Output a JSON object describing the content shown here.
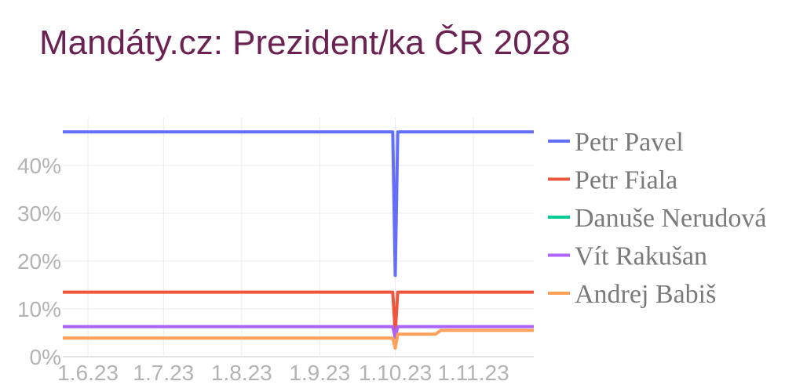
{
  "chart_data": {
    "type": "line",
    "title": "Mandáty.cz: Prezident/ka ČR 2028",
    "xlabel": "",
    "ylabel": "",
    "x_ticks": [
      "1.6.23",
      "1.7.23",
      "1.8.23",
      "1.9.23",
      "1.10.23",
      "1.11.23"
    ],
    "y_ticks": [
      "0%",
      "10%",
      "20%",
      "30%",
      "40%"
    ],
    "x_range": [
      "2023-05-22",
      "2023-11-25"
    ],
    "ylim": [
      0,
      50
    ],
    "grid": true,
    "legend_position": "right",
    "series": [
      {
        "name": "Petr Pavel",
        "color": "#636efa",
        "points": [
          [
            "2023-05-22",
            47
          ],
          [
            "2023-09-29",
            47
          ],
          [
            "2023-09-30",
            47
          ],
          [
            "2023-10-01",
            17
          ],
          [
            "2023-10-02",
            47
          ],
          [
            "2023-11-25",
            47
          ]
        ]
      },
      {
        "name": "Petr Fiala",
        "color": "#ef553b",
        "points": [
          [
            "2023-05-22",
            13.5
          ],
          [
            "2023-09-30",
            13.5
          ],
          [
            "2023-10-01",
            5
          ],
          [
            "2023-10-02",
            13.5
          ],
          [
            "2023-11-25",
            13.5
          ]
        ]
      },
      {
        "name": "Danuše Nerudová",
        "color": "#00cc96",
        "points": []
      },
      {
        "name": "Vít Rakušan",
        "color": "#ab63fa",
        "points": [
          [
            "2023-05-22",
            6.3
          ],
          [
            "2023-09-30",
            6.3
          ],
          [
            "2023-10-01",
            4
          ],
          [
            "2023-10-02",
            6.3
          ],
          [
            "2023-11-25",
            6.3
          ]
        ]
      },
      {
        "name": "Andrej Babiš",
        "color": "#ffa15a",
        "points": [
          [
            "2023-05-22",
            3.9
          ],
          [
            "2023-09-30",
            3.9
          ],
          [
            "2023-10-01",
            1.8
          ],
          [
            "2023-10-02",
            4.7
          ],
          [
            "2023-10-17",
            4.7
          ],
          [
            "2023-10-19",
            5.5
          ],
          [
            "2023-11-25",
            5.5
          ]
        ]
      }
    ]
  }
}
